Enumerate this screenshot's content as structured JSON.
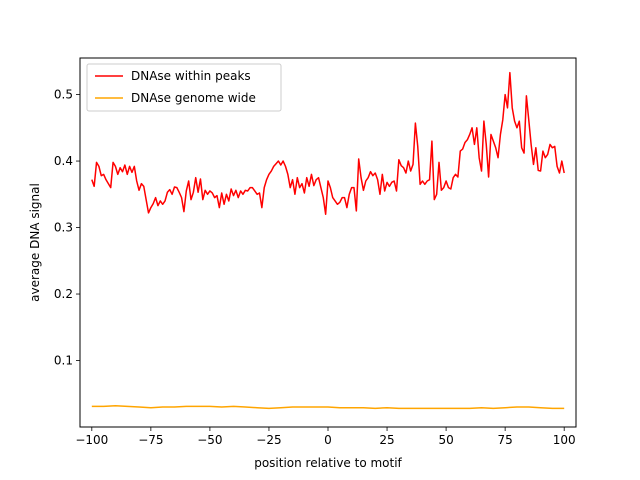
{
  "chart_data": {
    "type": "line",
    "title": "",
    "xlabel": "position relative to motif",
    "ylabel": "average DNA signal",
    "xlim": [
      -105,
      105
    ],
    "ylim": [
      0.0,
      0.555
    ],
    "xticks": [
      -100,
      -75,
      -50,
      -25,
      0,
      25,
      50,
      75,
      100
    ],
    "xtick_labels": [
      "−100",
      "−75",
      "−50",
      "−25",
      "0",
      "25",
      "50",
      "75",
      "100"
    ],
    "yticks": [
      0.1,
      0.2,
      0.3,
      0.4,
      0.5
    ],
    "ytick_labels": [
      "0.1",
      "0.2",
      "0.3",
      "0.4",
      "0.5"
    ],
    "grid": false,
    "legend": "upper-left",
    "series": [
      {
        "name": "DNAse within peaks",
        "color": "#ff0000",
        "x": [
          -100,
          -99,
          -98,
          -97,
          -96,
          -95,
          -94,
          -93,
          -92,
          -91,
          -90,
          -89,
          -88,
          -87,
          -86,
          -85,
          -84,
          -83,
          -82,
          -81,
          -80,
          -79,
          -78,
          -77,
          -76,
          -75,
          -74,
          -73,
          -72,
          -71,
          -70,
          -69,
          -68,
          -67,
          -66,
          -65,
          -64,
          -63,
          -62,
          -61,
          -60,
          -59,
          -58,
          -57,
          -56,
          -55,
          -54,
          -53,
          -52,
          -51,
          -50,
          -49,
          -48,
          -47,
          -46,
          -45,
          -44,
          -43,
          -42,
          -41,
          -40,
          -39,
          -38,
          -37,
          -36,
          -35,
          -34,
          -33,
          -32,
          -31,
          -30,
          -29,
          -28,
          -27,
          -26,
          -25,
          -24,
          -23,
          -22,
          -21,
          -20,
          -19,
          -18,
          -17,
          -16,
          -15,
          -14,
          -13,
          -12,
          -11,
          -10,
          -9,
          -8,
          -7,
          -6,
          -5,
          -4,
          -3,
          -2,
          -1,
          0,
          1,
          2,
          3,
          4,
          5,
          6,
          7,
          8,
          9,
          10,
          11,
          12,
          13,
          14,
          15,
          16,
          17,
          18,
          19,
          20,
          21,
          22,
          23,
          24,
          25,
          26,
          27,
          28,
          29,
          30,
          31,
          32,
          33,
          34,
          35,
          36,
          37,
          38,
          39,
          40,
          41,
          42,
          43,
          44,
          45,
          46,
          47,
          48,
          49,
          50,
          51,
          52,
          53,
          54,
          55,
          56,
          57,
          58,
          59,
          60,
          61,
          62,
          63,
          64,
          65,
          66,
          67,
          68,
          69,
          70,
          71,
          72,
          73,
          74,
          75,
          76,
          77,
          78,
          79,
          80,
          81,
          82,
          83,
          84,
          85,
          86,
          87,
          88,
          89,
          90,
          91,
          92,
          93,
          94,
          95,
          96,
          97,
          98,
          99,
          100
        ],
        "y": [
          0.372,
          0.362,
          0.398,
          0.392,
          0.378,
          0.38,
          0.372,
          0.366,
          0.36,
          0.398,
          0.392,
          0.38,
          0.39,
          0.384,
          0.394,
          0.38,
          0.392,
          0.383,
          0.392,
          0.37,
          0.356,
          0.366,
          0.362,
          0.342,
          0.322,
          0.33,
          0.336,
          0.345,
          0.333,
          0.34,
          0.335,
          0.34,
          0.353,
          0.357,
          0.35,
          0.361,
          0.36,
          0.353,
          0.345,
          0.324,
          0.355,
          0.37,
          0.342,
          0.353,
          0.375,
          0.353,
          0.373,
          0.342,
          0.356,
          0.35,
          0.355,
          0.352,
          0.345,
          0.348,
          0.33,
          0.352,
          0.335,
          0.35,
          0.34,
          0.358,
          0.348,
          0.356,
          0.345,
          0.355,
          0.35,
          0.356,
          0.355,
          0.36,
          0.36,
          0.355,
          0.35,
          0.352,
          0.33,
          0.36,
          0.372,
          0.38,
          0.385,
          0.392,
          0.396,
          0.4,
          0.394,
          0.4,
          0.392,
          0.38,
          0.36,
          0.372,
          0.35,
          0.375,
          0.36,
          0.366,
          0.352,
          0.375,
          0.362,
          0.38,
          0.363,
          0.372,
          0.375,
          0.36,
          0.345,
          0.32,
          0.37,
          0.36,
          0.345,
          0.34,
          0.335,
          0.338,
          0.345,
          0.345,
          0.33,
          0.35,
          0.36,
          0.36,
          0.325,
          0.403,
          0.375,
          0.356,
          0.37,
          0.375,
          0.384,
          0.378,
          0.382,
          0.372,
          0.35,
          0.38,
          0.355,
          0.368,
          0.362,
          0.368,
          0.37,
          0.355,
          0.402,
          0.393,
          0.39,
          0.382,
          0.4,
          0.385,
          0.395,
          0.457,
          0.422,
          0.365,
          0.37,
          0.365,
          0.37,
          0.372,
          0.43,
          0.342,
          0.35,
          0.398,
          0.356,
          0.36,
          0.37,
          0.36,
          0.358,
          0.375,
          0.38,
          0.376,
          0.415,
          0.418,
          0.428,
          0.432,
          0.44,
          0.45,
          0.425,
          0.45,
          0.405,
          0.385,
          0.46,
          0.425,
          0.376,
          0.44,
          0.43,
          0.42,
          0.405,
          0.44,
          0.462,
          0.5,
          0.48,
          0.533,
          0.48,
          0.46,
          0.45,
          0.46,
          0.42,
          0.412,
          0.498,
          0.462,
          0.425,
          0.395,
          0.42,
          0.386,
          0.385,
          0.415,
          0.405,
          0.41,
          0.425,
          0.42,
          0.422,
          0.392,
          0.382,
          0.4,
          0.382
        ]
      },
      {
        "name": "DNAse genome wide",
        "color": "#ffa500",
        "x": [
          -100,
          -95,
          -90,
          -85,
          -80,
          -75,
          -70,
          -65,
          -60,
          -55,
          -50,
          -45,
          -40,
          -35,
          -30,
          -25,
          -20,
          -15,
          -10,
          -5,
          0,
          5,
          10,
          15,
          20,
          25,
          30,
          35,
          40,
          45,
          50,
          55,
          60,
          65,
          70,
          75,
          80,
          85,
          90,
          95,
          100
        ],
        "y": [
          0.031,
          0.031,
          0.032,
          0.031,
          0.03,
          0.029,
          0.03,
          0.03,
          0.031,
          0.031,
          0.031,
          0.03,
          0.031,
          0.03,
          0.029,
          0.028,
          0.029,
          0.03,
          0.03,
          0.03,
          0.03,
          0.029,
          0.029,
          0.029,
          0.028,
          0.029,
          0.028,
          0.028,
          0.028,
          0.028,
          0.028,
          0.028,
          0.028,
          0.029,
          0.028,
          0.029,
          0.03,
          0.03,
          0.029,
          0.028,
          0.028
        ]
      }
    ]
  }
}
